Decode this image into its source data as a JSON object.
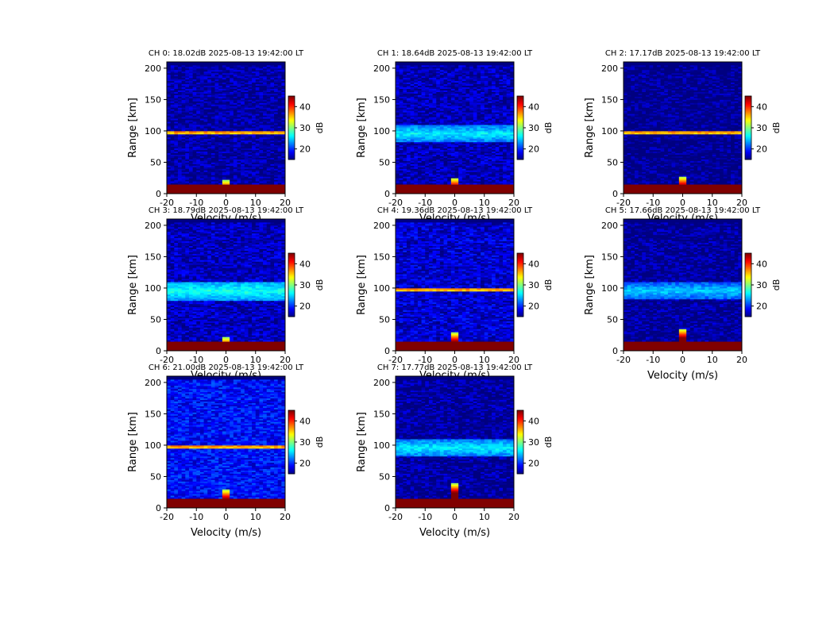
{
  "figure": {
    "background": "#ffffff"
  },
  "chart_data": [
    {
      "type": "heatmap",
      "title": "CH 0: 18.02dB 2025-08-13 19:42:00 LT",
      "xlabel": "Velocity (m/s)",
      "ylabel": "Range [km]",
      "xlim": [
        -20,
        20
      ],
      "ylim": [
        0,
        210
      ],
      "xticks": [
        -20,
        -10,
        0,
        10,
        20
      ],
      "yticks": [
        0,
        50,
        100,
        150,
        200
      ],
      "colorbar": {
        "label": "dB",
        "range": [
          15,
          45
        ],
        "ticks": [
          20,
          30,
          40
        ],
        "colormap": "jet"
      },
      "background_db": 18.02,
      "layer_km": 98,
      "layer_db": 38,
      "layer_width_km": 3,
      "clutter_top_km": 14,
      "clutter_db": 45,
      "spike_top_km": 22
    },
    {
      "type": "heatmap",
      "title": "CH 1: 18.64dB 2025-08-13 19:42:00 LT",
      "xlabel": "Velocity (m/s)",
      "ylabel": "Range [km]",
      "xlim": [
        -20,
        20
      ],
      "ylim": [
        0,
        210
      ],
      "xticks": [
        -20,
        -10,
        0,
        10,
        20
      ],
      "yticks": [
        0,
        50,
        100,
        150,
        200
      ],
      "colorbar": {
        "label": "dB",
        "range": [
          15,
          45
        ],
        "ticks": [
          20,
          30,
          40
        ],
        "colormap": "jet"
      },
      "background_db": 18.64,
      "layer_km": 96,
      "layer_db": 26,
      "layer_width_km": 14,
      "clutter_top_km": 14,
      "clutter_db": 45,
      "spike_top_km": 26
    },
    {
      "type": "heatmap",
      "title": "CH 2: 17.17dB 2025-08-13 19:42:00 LT",
      "xlabel": "Velocity (m/s)",
      "ylabel": "Range [km]",
      "xlim": [
        -20,
        20
      ],
      "ylim": [
        0,
        210
      ],
      "xticks": [
        -20,
        -10,
        0,
        10,
        20
      ],
      "yticks": [
        0,
        50,
        100,
        150,
        200
      ],
      "colorbar": {
        "label": "dB",
        "range": [
          15,
          45
        ],
        "ticks": [
          20,
          30,
          40
        ],
        "colormap": "jet"
      },
      "background_db": 17.17,
      "layer_km": 98,
      "layer_db": 38,
      "layer_width_km": 3,
      "clutter_top_km": 14,
      "clutter_db": 45,
      "spike_top_km": 28
    },
    {
      "type": "heatmap",
      "title": "CH 3: 18.79dB 2025-08-13 19:42:00 LT",
      "xlabel": "Velocity (m/s)",
      "ylabel": "Range [km]",
      "xlim": [
        -20,
        20
      ],
      "ylim": [
        0,
        210
      ],
      "xticks": [
        -20,
        -10,
        0,
        10,
        20
      ],
      "yticks": [
        0,
        50,
        100,
        150,
        200
      ],
      "colorbar": {
        "label": "dB",
        "range": [
          15,
          45
        ],
        "ticks": [
          20,
          30,
          40
        ],
        "colormap": "jet"
      },
      "background_db": 18.79,
      "layer_km": 96,
      "layer_db": 27,
      "layer_width_km": 15,
      "clutter_top_km": 14,
      "clutter_db": 45,
      "spike_top_km": 22
    },
    {
      "type": "heatmap",
      "title": "CH 4: 19.36dB 2025-08-13 19:42:00 LT",
      "xlabel": "Velocity (m/s)",
      "ylabel": "Range [km]",
      "xlim": [
        -20,
        20
      ],
      "ylim": [
        0,
        210
      ],
      "xticks": [
        -20,
        -10,
        0,
        10,
        20
      ],
      "yticks": [
        0,
        50,
        100,
        150,
        200
      ],
      "colorbar": {
        "label": "dB",
        "range": [
          15,
          45
        ],
        "ticks": [
          20,
          30,
          40
        ],
        "colormap": "jet"
      },
      "background_db": 19.36,
      "layer_km": 98,
      "layer_db": 38,
      "layer_width_km": 3,
      "clutter_top_km": 14,
      "clutter_db": 45,
      "spike_top_km": 30
    },
    {
      "type": "heatmap",
      "title": "CH 5: 17.66dB 2025-08-13 19:42:00 LT",
      "xlabel": "Velocity (m/s)",
      "ylabel": "Range [km]",
      "xlim": [
        -20,
        20
      ],
      "ylim": [
        0,
        210
      ],
      "xticks": [
        -20,
        -10,
        0,
        10,
        20
      ],
      "yticks": [
        0,
        50,
        100,
        150,
        200
      ],
      "colorbar": {
        "label": "dB",
        "range": [
          15,
          45
        ],
        "ticks": [
          20,
          30,
          40
        ],
        "colormap": "jet"
      },
      "background_db": 17.66,
      "layer_km": 96,
      "layer_db": 25,
      "layer_width_km": 14,
      "clutter_top_km": 14,
      "clutter_db": 45,
      "spike_top_km": 36
    },
    {
      "type": "heatmap",
      "title": "CH 6: 21.00dB 2025-08-13 19:42:00 LT",
      "xlabel": "Velocity (m/s)",
      "ylabel": "Range [km]",
      "xlim": [
        -20,
        20
      ],
      "ylim": [
        0,
        210
      ],
      "xticks": [
        -20,
        -10,
        0,
        10,
        20
      ],
      "yticks": [
        0,
        50,
        100,
        150,
        200
      ],
      "colorbar": {
        "label": "dB",
        "range": [
          15,
          45
        ],
        "ticks": [
          20,
          30,
          40
        ],
        "colormap": "jet"
      },
      "background_db": 21.0,
      "layer_km": 98,
      "layer_db": 38,
      "layer_width_km": 3,
      "clutter_top_km": 14,
      "clutter_db": 45,
      "spike_top_km": 30
    },
    {
      "type": "heatmap",
      "title": "CH 7: 17.77dB 2025-08-13 19:42:00 LT",
      "xlabel": "Velocity (m/s)",
      "ylabel": "Range [km]",
      "xlim": [
        -20,
        20
      ],
      "ylim": [
        0,
        210
      ],
      "xticks": [
        -20,
        -10,
        0,
        10,
        20
      ],
      "yticks": [
        0,
        50,
        100,
        150,
        200
      ],
      "colorbar": {
        "label": "dB",
        "range": [
          15,
          45
        ],
        "ticks": [
          20,
          30,
          40
        ],
        "colormap": "jet"
      },
      "background_db": 17.77,
      "layer_km": 96,
      "layer_db": 26,
      "layer_width_km": 14,
      "clutter_top_km": 14,
      "clutter_db": 45,
      "spike_top_km": 40
    }
  ]
}
